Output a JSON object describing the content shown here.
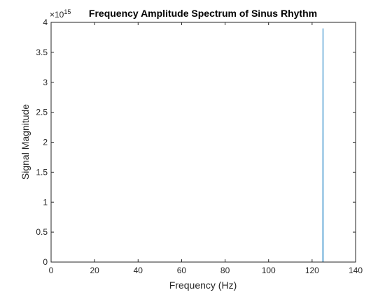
{
  "chart_data": {
    "type": "line",
    "title": "Frequency Amplitude Spectrum of Sinus Rhythm",
    "xlabel": "Frequency (Hz)",
    "ylabel": "Signal Magnitude",
    "y_exponent_label": "×10",
    "y_exponent": "15",
    "y_multiplier": 1000000000000000.0,
    "xlim": [
      0,
      140
    ],
    "ylim": [
      0,
      4
    ],
    "x_ticks": [
      0,
      20,
      40,
      60,
      80,
      100,
      120,
      140
    ],
    "x_tick_labels": [
      "0",
      "20",
      "40",
      "60",
      "80",
      "100",
      "120",
      "140"
    ],
    "y_ticks": [
      0,
      0.5,
      1,
      1.5,
      2,
      2.5,
      3,
      3.5,
      4
    ],
    "y_tick_labels": [
      "0",
      "0.5",
      "1",
      "1.5",
      "2",
      "2.5",
      "3",
      "3.5",
      "4"
    ],
    "grid": false,
    "series": [
      {
        "color": "#0072bd",
        "x": [
          0,
          124.95,
          125,
          125.05,
          140
        ],
        "y": [
          0,
          0,
          3.9,
          0,
          0
        ]
      }
    ]
  }
}
